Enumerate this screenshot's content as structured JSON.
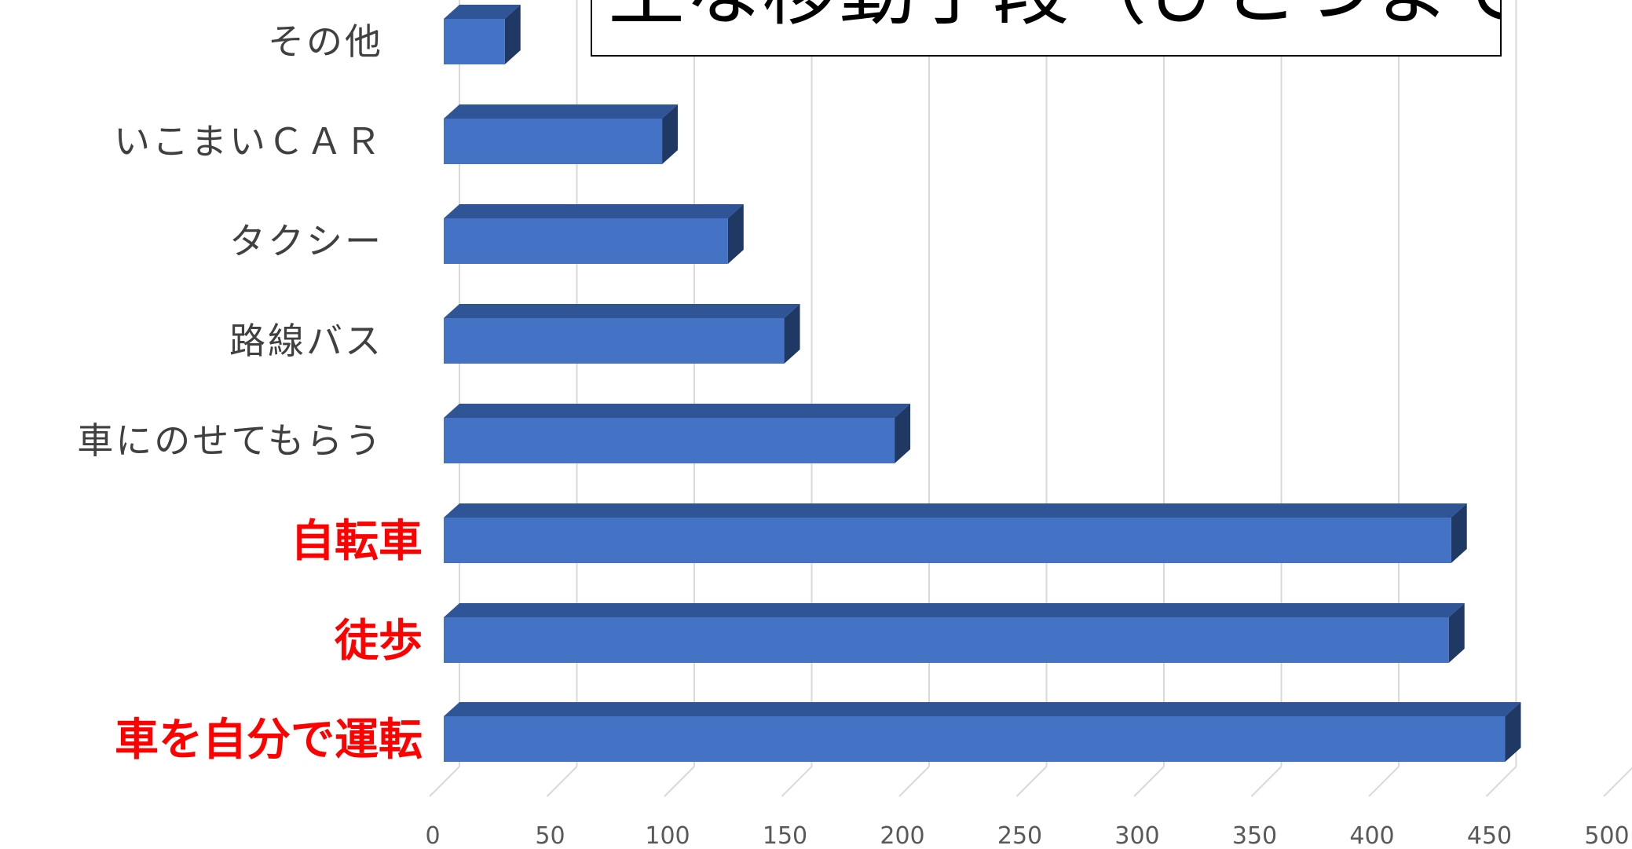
{
  "chart_data": {
    "type": "bar",
    "orientation": "horizontal",
    "title": "主な移動手段（ひとつまで）",
    "categories": [
      "車を自分で運転",
      "徒歩",
      "自転車",
      "車にのせてもらう",
      "路線バス",
      "タクシー",
      "いこまいＣＡＲ",
      "その他"
    ],
    "values": [
      452,
      428,
      429,
      192,
      145,
      121,
      93,
      26
    ],
    "emphasized_categories": [
      "車を自分で運転",
      "徒歩",
      "自転車"
    ],
    "x_ticks": [
      0,
      50,
      100,
      150,
      200,
      250,
      300,
      350,
      400,
      450,
      500
    ],
    "xlim": [
      0,
      500
    ],
    "grid": true,
    "legend": "none",
    "colors": {
      "bar_front": "#4472C4",
      "bar_top": "#2F5597",
      "bar_side": "#203864",
      "emphasis_label": "#FF0000",
      "normal_label": "#404040",
      "grid": "#D9D9D9"
    }
  }
}
